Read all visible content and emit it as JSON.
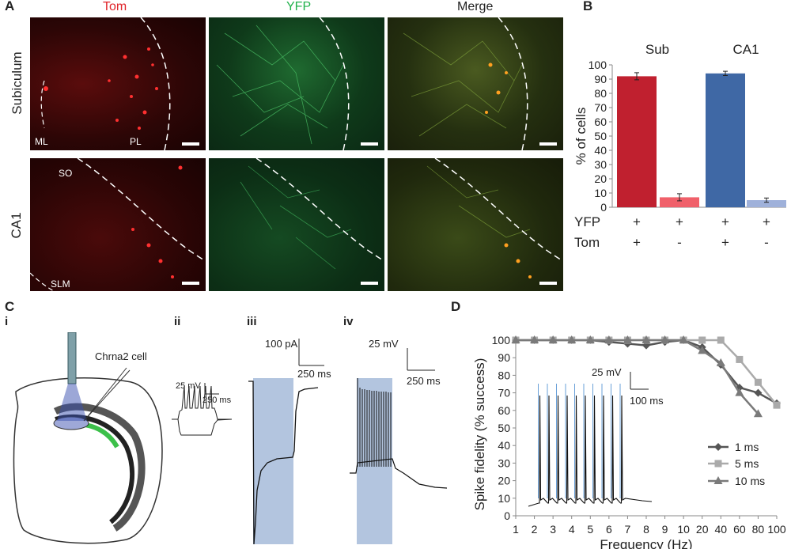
{
  "panels": {
    "A": "A",
    "B": "B",
    "C": "C",
    "D": "D",
    "c_i": "i",
    "c_ii": "ii",
    "c_iii": "iii",
    "c_iv": "iv"
  },
  "micro": {
    "col_titles": [
      "Tom",
      "YFP",
      "Merge"
    ],
    "col_colors": [
      "#e0242a",
      "#22b24c",
      "#222222"
    ],
    "row_titles": [
      "Subiculum",
      "CA1"
    ],
    "labels": {
      "ml": "ML",
      "pl": "PL",
      "so": "SO",
      "slm": "SLM"
    }
  },
  "chart_b": {
    "chart_data": {
      "type": "bar",
      "groups": [
        "Sub",
        "CA1"
      ],
      "ylabel": "% of cells",
      "ylim": [
        0,
        100
      ],
      "yticks": [
        0,
        10,
        20,
        30,
        40,
        50,
        60,
        70,
        80,
        90,
        100
      ],
      "bars": [
        {
          "group": "Sub",
          "yfp": "+",
          "tom": "+",
          "value": 92,
          "err": 2.5,
          "color": "#c0202f"
        },
        {
          "group": "Sub",
          "yfp": "+",
          "tom": "-",
          "value": 7,
          "err": 2.5,
          "color": "#f0606a"
        },
        {
          "group": "CA1",
          "yfp": "+",
          "tom": "+",
          "value": 94,
          "err": 1.5,
          "color": "#3f68a5"
        },
        {
          "group": "CA1",
          "yfp": "+",
          "tom": "-",
          "value": 5,
          "err": 1.5,
          "color": "#9fb1da"
        }
      ],
      "row_labels": [
        "YFP",
        "Tom"
      ]
    }
  },
  "panel_c": {
    "cell_label": "Chrna2 cell",
    "scale_ii": {
      "v": "25 mV",
      "t": "250 ms"
    },
    "scale_iii": {
      "v": "100 pA",
      "t": "250 ms"
    },
    "scale_iv": {
      "v": "25 mV",
      "t": "250 ms"
    }
  },
  "chart_d": {
    "chart_data": {
      "type": "line",
      "x": [
        "1",
        "2",
        "3",
        "4",
        "5",
        "6",
        "7",
        "8",
        "9",
        "10",
        "20",
        "40",
        "60",
        "80",
        "100"
      ],
      "xlabel": "Frequency (Hz)",
      "ylabel": "Spike fidelity (% success)",
      "ylim": [
        0,
        100
      ],
      "yticks": [
        0,
        10,
        20,
        30,
        40,
        50,
        60,
        70,
        80,
        90,
        100
      ],
      "series": [
        {
          "name": "1 ms",
          "color": "#555555",
          "marker": "diamond",
          "values": [
            100,
            100,
            100,
            100,
            100,
            99,
            98,
            97,
            99,
            100,
            96,
            86,
            73,
            70,
            64
          ]
        },
        {
          "name": "5 ms",
          "color": "#aaaaaa",
          "marker": "square",
          "values": [
            100,
            100,
            100,
            100,
            100,
            100,
            100,
            100,
            100,
            100,
            100,
            100,
            89,
            76,
            63
          ]
        },
        {
          "name": "10 ms",
          "color": "#7a7a7a",
          "marker": "triangle",
          "values": [
            100,
            100,
            100,
            100,
            100,
            100,
            100,
            100,
            100,
            100,
            94,
            87,
            70,
            58,
            null
          ]
        }
      ],
      "inset_scale": {
        "v": "25 mV",
        "t": "100 ms"
      }
    }
  }
}
